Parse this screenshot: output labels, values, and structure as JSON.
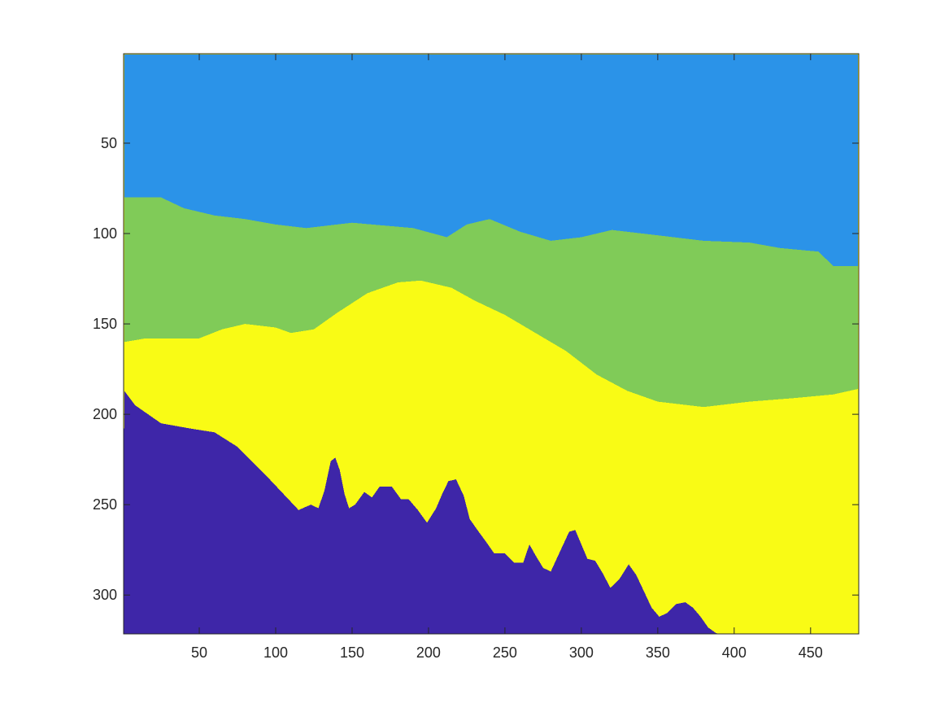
{
  "chart_data": {
    "type": "heatmap",
    "title": "",
    "xlabel": "",
    "ylabel": "",
    "xlim": [
      0.5,
      481.5
    ],
    "ylim": [
      0.5,
      321.5
    ],
    "y_reversed": true,
    "grid": false,
    "colorbar": false,
    "x_ticks": [
      50,
      100,
      150,
      200,
      250,
      300,
      350,
      400,
      450
    ],
    "y_ticks": [
      50,
      100,
      150,
      200,
      250,
      300
    ],
    "classes": [
      {
        "label": "1",
        "color": "#3e26a8"
      },
      {
        "label": "2",
        "color": "#2b93e8"
      },
      {
        "label": "3",
        "color": "#80cb58"
      },
      {
        "label": "4",
        "color": "#f9fb15"
      }
    ],
    "background_class": 3,
    "regions": [
      {
        "class": 1,
        "boundary": [
          [
            1,
            1
          ],
          [
            481,
            1
          ],
          [
            481,
            118
          ],
          [
            465,
            118
          ],
          [
            455,
            110
          ],
          [
            430,
            108
          ],
          [
            410,
            105
          ],
          [
            380,
            104
          ],
          [
            350,
            101
          ],
          [
            320,
            98
          ],
          [
            300,
            102
          ],
          [
            280,
            104
          ],
          [
            260,
            99
          ],
          [
            240,
            92
          ],
          [
            225,
            95
          ],
          [
            212,
            102
          ],
          [
            190,
            97
          ],
          [
            150,
            94
          ],
          [
            120,
            97
          ],
          [
            100,
            95
          ],
          [
            80,
            92
          ],
          [
            60,
            90
          ],
          [
            40,
            86
          ],
          [
            25,
            80
          ],
          [
            1,
            80
          ]
        ]
      },
      {
        "class": 2,
        "boundary": [
          [
            1,
            80
          ],
          [
            25,
            80
          ],
          [
            40,
            86
          ],
          [
            60,
            90
          ],
          [
            80,
            92
          ],
          [
            100,
            95
          ],
          [
            120,
            97
          ],
          [
            150,
            94
          ],
          [
            190,
            97
          ],
          [
            212,
            102
          ],
          [
            225,
            95
          ],
          [
            240,
            92
          ],
          [
            260,
            99
          ],
          [
            280,
            104
          ],
          [
            300,
            102
          ],
          [
            320,
            98
          ],
          [
            350,
            101
          ],
          [
            380,
            104
          ],
          [
            410,
            105
          ],
          [
            430,
            108
          ],
          [
            455,
            110
          ],
          [
            465,
            118
          ],
          [
            481,
            118
          ],
          [
            481,
            186
          ],
          [
            465,
            189
          ],
          [
            440,
            191
          ],
          [
            410,
            193
          ],
          [
            380,
            196
          ],
          [
            350,
            193
          ],
          [
            330,
            187
          ],
          [
            310,
            178
          ],
          [
            290,
            165
          ],
          [
            270,
            155
          ],
          [
            250,
            145
          ],
          [
            230,
            137
          ],
          [
            215,
            130
          ],
          [
            195,
            126
          ],
          [
            180,
            127
          ],
          [
            160,
            133
          ],
          [
            140,
            144
          ],
          [
            125,
            153
          ],
          [
            110,
            155
          ],
          [
            100,
            152
          ],
          [
            80,
            150
          ],
          [
            65,
            153
          ],
          [
            50,
            158
          ],
          [
            30,
            158
          ],
          [
            15,
            158
          ],
          [
            1,
            160
          ]
        ]
      },
      {
        "class": 0,
        "boundary": [
          [
            1,
            187
          ],
          [
            8,
            195
          ],
          [
            25,
            205
          ],
          [
            45,
            208
          ],
          [
            60,
            210
          ],
          [
            75,
            218
          ],
          [
            95,
            235
          ],
          [
            115,
            253
          ],
          [
            123,
            250
          ],
          [
            128,
            252
          ],
          [
            132,
            242
          ],
          [
            136,
            226
          ],
          [
            139,
            224
          ],
          [
            142,
            231
          ],
          [
            145,
            244
          ],
          [
            148,
            252
          ],
          [
            152,
            250
          ],
          [
            158,
            243
          ],
          [
            163,
            246
          ],
          [
            168,
            240
          ],
          [
            176,
            240
          ],
          [
            182,
            247
          ],
          [
            187,
            247
          ],
          [
            193,
            253
          ],
          [
            199,
            260
          ],
          [
            205,
            252
          ],
          [
            209,
            244
          ],
          [
            213,
            237
          ],
          [
            218,
            236
          ],
          [
            223,
            245
          ],
          [
            227,
            258
          ],
          [
            232,
            264
          ],
          [
            238,
            271
          ],
          [
            243,
            277
          ],
          [
            250,
            277
          ],
          [
            256,
            282
          ],
          [
            262,
            282
          ],
          [
            266,
            272
          ],
          [
            270,
            278
          ],
          [
            275,
            285
          ],
          [
            280,
            287
          ],
          [
            286,
            276
          ],
          [
            292,
            265
          ],
          [
            296,
            264
          ],
          [
            300,
            272
          ],
          [
            304,
            280
          ],
          [
            309,
            281
          ],
          [
            314,
            288
          ],
          [
            319,
            296
          ],
          [
            325,
            291
          ],
          [
            331,
            283
          ],
          [
            336,
            289
          ],
          [
            341,
            298
          ],
          [
            346,
            307
          ],
          [
            351,
            312
          ],
          [
            356,
            310
          ],
          [
            362,
            305
          ],
          [
            368,
            304
          ],
          [
            373,
            307
          ],
          [
            378,
            312
          ],
          [
            383,
            318
          ],
          [
            388,
            321
          ],
          [
            390,
            321.5
          ],
          [
            0.5,
            321.5
          ]
        ]
      }
    ]
  }
}
